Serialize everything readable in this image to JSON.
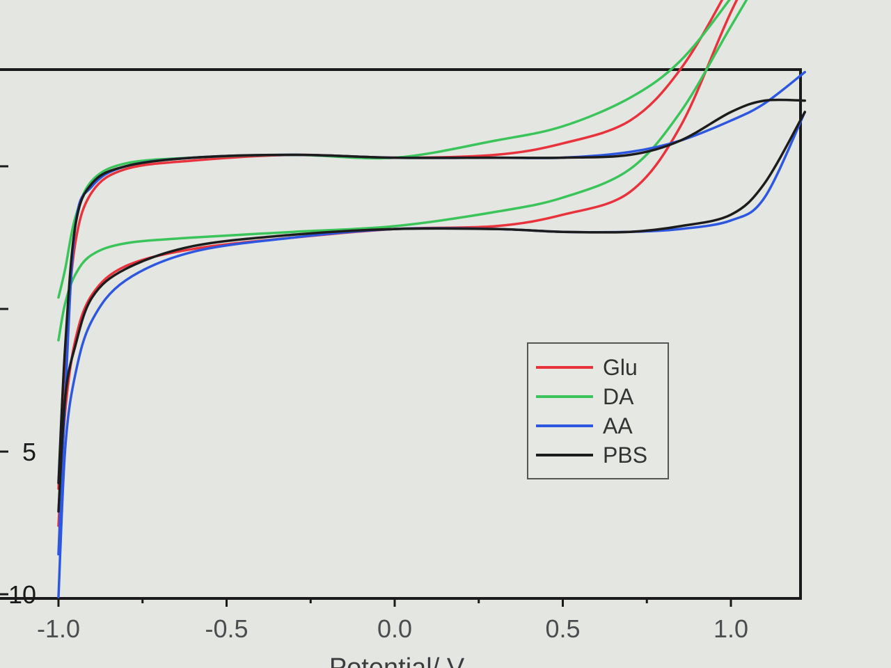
{
  "chart_data": {
    "type": "line",
    "xlabel": "Potential/ V",
    "ylabel": "",
    "x_ticks": [
      "-1.0",
      "-0.5",
      "0.0",
      "0.5",
      "1.0"
    ],
    "y_ticks": [
      "5",
      "10"
    ],
    "xlim": [
      -1.0,
      1.25
    ],
    "ylim": [
      -10,
      15
    ],
    "grid": false,
    "legend_position": "center-right",
    "series": [
      {
        "name": "Glu",
        "color": "#e8323c",
        "upper": [
          [
            -1.0,
            -6.2
          ],
          [
            -0.98,
            -1.5
          ],
          [
            -0.95,
            2.4
          ],
          [
            -0.9,
            4.2
          ],
          [
            -0.8,
            5.0
          ],
          [
            -0.6,
            5.3
          ],
          [
            -0.3,
            5.5
          ],
          [
            0.0,
            5.4
          ],
          [
            0.3,
            5.5
          ],
          [
            0.5,
            5.9
          ],
          [
            0.7,
            6.7
          ],
          [
            0.85,
            8.5
          ],
          [
            1.0,
            11.5
          ],
          [
            1.15,
            15.0
          ],
          [
            1.25,
            17.5
          ]
        ],
        "lower": [
          [
            -1.0,
            -7.5
          ],
          [
            -0.98,
            -3.5
          ],
          [
            -0.95,
            -1.0
          ],
          [
            -0.9,
            0.6
          ],
          [
            -0.8,
            1.6
          ],
          [
            -0.6,
            2.2
          ],
          [
            -0.3,
            2.6
          ],
          [
            0.0,
            2.9
          ],
          [
            0.3,
            3.0
          ],
          [
            0.5,
            3.4
          ],
          [
            0.7,
            4.2
          ],
          [
            0.85,
            6.5
          ],
          [
            1.0,
            10.5
          ],
          [
            1.15,
            14.0
          ],
          [
            1.25,
            16.8
          ]
        ]
      },
      {
        "name": "DA",
        "color": "#3bc45a",
        "upper": [
          [
            -1.0,
            0.5
          ],
          [
            -0.98,
            1.5
          ],
          [
            -0.95,
            3.3
          ],
          [
            -0.9,
            4.6
          ],
          [
            -0.8,
            5.2
          ],
          [
            -0.6,
            5.4
          ],
          [
            -0.3,
            5.5
          ],
          [
            0.0,
            5.4
          ],
          [
            0.3,
            6.0
          ],
          [
            0.5,
            6.5
          ],
          [
            0.7,
            7.5
          ],
          [
            0.85,
            8.8
          ],
          [
            1.0,
            11.0
          ],
          [
            1.15,
            13.5
          ],
          [
            1.25,
            15.5
          ]
        ],
        "lower": [
          [
            -1.0,
            -1.0
          ],
          [
            -0.98,
            0.3
          ],
          [
            -0.95,
            1.3
          ],
          [
            -0.9,
            2.0
          ],
          [
            -0.8,
            2.4
          ],
          [
            -0.6,
            2.6
          ],
          [
            -0.3,
            2.8
          ],
          [
            0.0,
            3.0
          ],
          [
            0.3,
            3.5
          ],
          [
            0.5,
            4.0
          ],
          [
            0.7,
            5.0
          ],
          [
            0.85,
            7.0
          ],
          [
            1.0,
            10.0
          ],
          [
            1.15,
            13.0
          ],
          [
            1.25,
            15.0
          ]
        ]
      },
      {
        "name": "AA",
        "color": "#2e57e0",
        "upper": [
          [
            -1.0,
            -8.5
          ],
          [
            -0.98,
            -3.0
          ],
          [
            -0.95,
            3.0
          ],
          [
            -0.9,
            4.4
          ],
          [
            -0.8,
            5.1
          ],
          [
            -0.6,
            5.4
          ],
          [
            -0.3,
            5.5
          ],
          [
            0.0,
            5.4
          ],
          [
            0.3,
            5.4
          ],
          [
            0.5,
            5.4
          ],
          [
            0.7,
            5.6
          ],
          [
            0.85,
            6.0
          ],
          [
            1.0,
            6.7
          ],
          [
            1.1,
            7.3
          ],
          [
            1.22,
            8.4
          ]
        ],
        "lower": [
          [
            -1.0,
            -10.0
          ],
          [
            -0.98,
            -4.8
          ],
          [
            -0.95,
            -2.2
          ],
          [
            -0.9,
            -0.3
          ],
          [
            -0.8,
            1.1
          ],
          [
            -0.6,
            2.1
          ],
          [
            -0.3,
            2.6
          ],
          [
            0.0,
            2.9
          ],
          [
            0.3,
            2.9
          ],
          [
            0.5,
            2.8
          ],
          [
            0.7,
            2.8
          ],
          [
            0.85,
            2.9
          ],
          [
            1.0,
            3.2
          ],
          [
            1.1,
            4.0
          ],
          [
            1.22,
            7.0
          ]
        ]
      },
      {
        "name": "PBS",
        "color": "#1c1c1c",
        "upper": [
          [
            -1.0,
            -6.0
          ],
          [
            -0.98,
            -1.2
          ],
          [
            -0.95,
            3.0
          ],
          [
            -0.9,
            4.5
          ],
          [
            -0.8,
            5.1
          ],
          [
            -0.6,
            5.4
          ],
          [
            -0.3,
            5.5
          ],
          [
            0.0,
            5.4
          ],
          [
            0.3,
            5.4
          ],
          [
            0.5,
            5.4
          ],
          [
            0.7,
            5.5
          ],
          [
            0.85,
            6.0
          ],
          [
            1.0,
            7.0
          ],
          [
            1.1,
            7.4
          ],
          [
            1.22,
            7.4
          ]
        ],
        "lower": [
          [
            -1.0,
            -7.0
          ],
          [
            -0.98,
            -3.0
          ],
          [
            -0.95,
            -1.2
          ],
          [
            -0.9,
            0.5
          ],
          [
            -0.8,
            1.5
          ],
          [
            -0.6,
            2.3
          ],
          [
            -0.3,
            2.7
          ],
          [
            0.0,
            2.9
          ],
          [
            0.3,
            2.9
          ],
          [
            0.5,
            2.8
          ],
          [
            0.7,
            2.8
          ],
          [
            0.85,
            3.0
          ],
          [
            1.0,
            3.4
          ],
          [
            1.1,
            4.5
          ],
          [
            1.22,
            7.0
          ]
        ]
      }
    ]
  }
}
